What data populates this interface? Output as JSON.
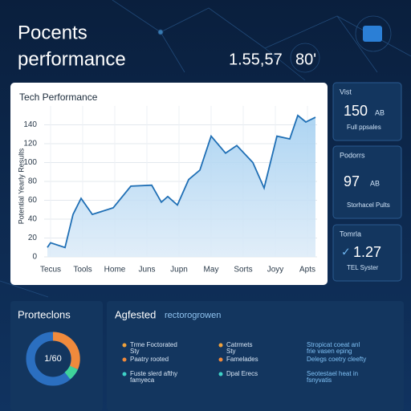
{
  "header": {
    "title_line1": "Pocents",
    "title_line2": "performance",
    "stat1": "1.55,57",
    "stat2": "80'"
  },
  "chart_data": {
    "type": "line",
    "title": "Tech Performance",
    "y_label": "Potential Yearly Results",
    "x": [
      -0.1,
      0,
      0.45,
      0.7,
      0.95,
      1.3,
      1.95,
      2.5,
      3.15,
      3.45,
      3.65,
      3.95,
      4.3,
      4.65,
      5,
      5.45,
      5.8,
      6.3,
      6.65,
      7.05,
      7.45,
      7.7,
      7.95,
      8.25
    ],
    "values": [
      10,
      15,
      10,
      45,
      62,
      45,
      52,
      75,
      76,
      58,
      64,
      55,
      82,
      92,
      128,
      110,
      118,
      100,
      73,
      128,
      125,
      150,
      143,
      148
    ],
    "color": "#1f6fb5",
    "xlim": [
      -0.2,
      8.3
    ],
    "xticks": [
      {
        "value": 0,
        "label": "Tecus"
      },
      {
        "value": 1,
        "label": "Tools"
      },
      {
        "value": 2,
        "label": "Home"
      },
      {
        "value": 3,
        "label": "Juns"
      },
      {
        "value": 4,
        "label": "Jupn"
      },
      {
        "value": 5,
        "label": "May"
      },
      {
        "value": 6,
        "label": "Sorts"
      },
      {
        "value": 7,
        "label": "Joyy"
      },
      {
        "value": 8,
        "label": "Apts"
      }
    ],
    "ylim": [
      0,
      160
    ],
    "yticks": [
      0,
      20,
      40,
      60,
      80,
      100,
      120,
      140
    ],
    "grid": true
  },
  "side_panels": [
    {
      "label": "Vist",
      "value": "150",
      "unit": "AB",
      "caption": "Full ppsales"
    },
    {
      "label": "Podorrs",
      "value": "97",
      "unit": "AB",
      "caption": "Storhacel Pults"
    },
    {
      "label": "Tomrla",
      "value": "1.27",
      "caption": "TEL Syster"
    }
  ],
  "protections": {
    "title": "Prorteclons",
    "center": "1/60"
  },
  "suggested": {
    "title": "Agfested",
    "subtitle": "rectorogrowen",
    "columns": [
      [
        [
          "Trme Foctorated",
          "Sty"
        ],
        [
          "Paatry rooted"
        ],
        [
          "Fuste slerd afthy",
          "famyeca"
        ]
      ],
      [
        [
          "Catrmets",
          "Sty"
        ],
        [
          "Famelades"
        ],
        [
          "Dpal Erecs"
        ]
      ],
      [
        [
          "Stropicat coeat anl",
          "frie vasen eping"
        ],
        [
          "Delegs coetry cleefty"
        ],
        [
          "Seotestael heat in",
          "fsnyvatis"
        ]
      ]
    ]
  }
}
